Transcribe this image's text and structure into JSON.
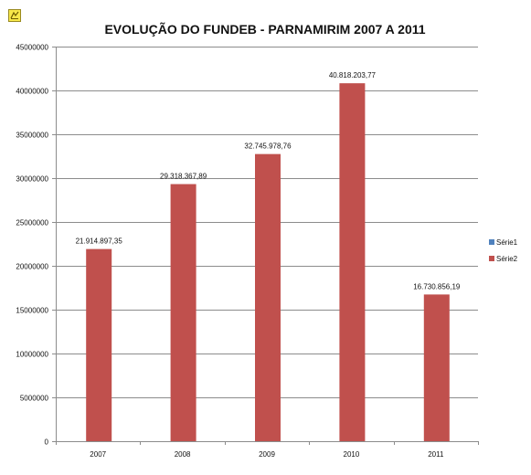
{
  "corner_icon": "object-anchor-icon",
  "chart_data": {
    "type": "bar",
    "title": "EVOLUÇÃO DO FUNDEB - PARNAMIRIM 2007 A 2011",
    "xlabel": "",
    "ylabel": "",
    "categories": [
      "2007",
      "2008",
      "2009",
      "2010",
      "2011"
    ],
    "ylim": [
      0,
      45000000
    ],
    "yticks": [
      0,
      5000000,
      10000000,
      15000000,
      20000000,
      25000000,
      30000000,
      35000000,
      40000000,
      45000000
    ],
    "grid": true,
    "legend_position": "right",
    "series": [
      {
        "name": "Série1",
        "color": "#4f81bd",
        "values": [
          0,
          0,
          0,
          0,
          0
        ]
      },
      {
        "name": "Série2",
        "color": "#c0504d",
        "values": [
          21914897.35,
          29318367.89,
          32745978.76,
          40818203.77,
          16730856.19
        ],
        "labels": [
          "21.914.897,35",
          "29.318.367,89",
          "32.745.978,76",
          "40.818.203,77",
          "16.730.856,19"
        ]
      }
    ]
  }
}
